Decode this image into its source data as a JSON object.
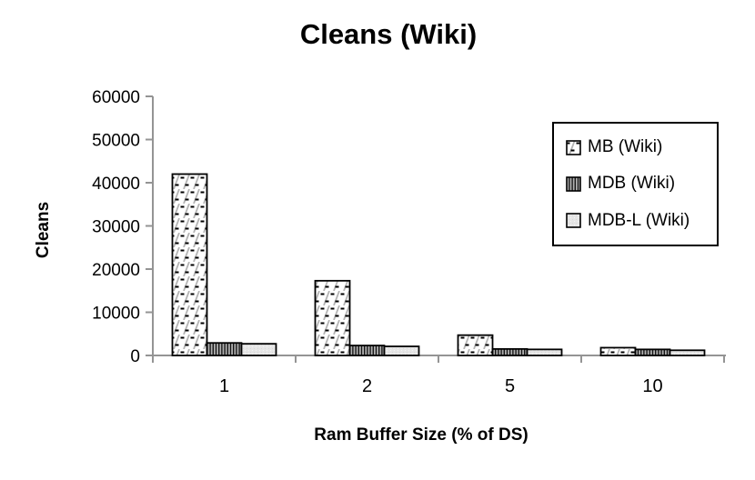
{
  "chart_data": {
    "type": "bar",
    "title": "Cleans (Wiki)",
    "xlabel": "Ram Buffer Size (% of DS)",
    "ylabel": "Cleans",
    "categories": [
      "1",
      "2",
      "5",
      "10"
    ],
    "series": [
      {
        "name": "MB (Wiki)",
        "pattern": "mb",
        "values": [
          42000,
          17300,
          4700,
          1800
        ]
      },
      {
        "name": "MDB (Wiki)",
        "pattern": "mdb",
        "values": [
          2900,
          2300,
          1500,
          1400
        ]
      },
      {
        "name": "MDB-L (Wiki)",
        "pattern": "mdbl",
        "values": [
          2700,
          2100,
          1400,
          1200
        ]
      }
    ],
    "ylim": [
      0,
      60000
    ],
    "yticks": [
      "0",
      "10000",
      "20000",
      "30000",
      "40000",
      "50000",
      "60000"
    ],
    "grid": false,
    "legend_position": "right"
  },
  "colors": {
    "background": "#ffffff",
    "axis": "#949494",
    "text": "#000000",
    "bar_border": "#000000",
    "legend_border": "#000000",
    "mb_hatch_gray": "#b5b5b5",
    "mdb_stripe_dark": "#141414",
    "mdb_stripe_bg": "#b0b0b0",
    "mdbl_fill": "#e6e6e6"
  }
}
